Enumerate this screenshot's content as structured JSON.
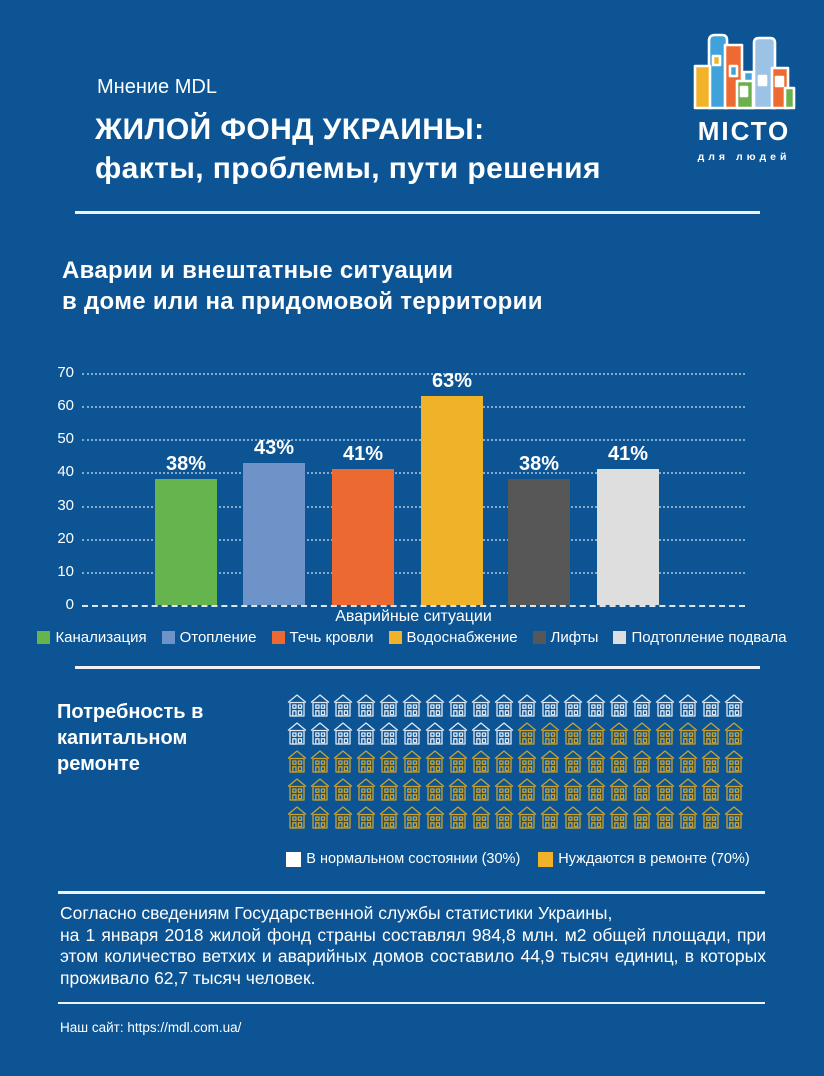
{
  "page": {
    "bg_color": "#0c5493",
    "kicker": "Мнение MDL",
    "title_line1": "ЖИЛОЙ ФОНД УКРАИНЫ:",
    "title_line2": "факты, проблемы, пути решения",
    "footer": "Наш сайт: https://mdl.com.ua/"
  },
  "logo": {
    "name": "МІСТО",
    "tagline": "для людей",
    "building_colors": [
      "#f2b32a",
      "#3fa2db",
      "#ed6a32",
      "#6ab04c",
      "#9cc3e5"
    ]
  },
  "accidents_chart": {
    "title_line1": "Аварии и внештатные ситуации",
    "title_line2": "в доме или на придомовой территории"
  },
  "repair_section": {
    "title_line1": "Потребность в",
    "title_line2": "капитальном",
    "title_line3": "ремонте"
  },
  "stats": {
    "line1": "Согласно сведениям Государственной службы статистики Украины,",
    "rest": "на 1 января 2018 жилой фонд страны составлял 984,8 млн. м2 общей площади, при этом количество ветхих и аварийных домов составило 44,9 тысяч единиц, в которых проживало 62,7 тысяч человек."
  },
  "chart_data": [
    {
      "type": "bar",
      "title": "Аварии и внештатные ситуации в доме или на придомовой территории",
      "categories": [
        "Канализация",
        "Отопление",
        "Течь кровли",
        "Водоснабжение",
        "Лифты",
        "Подтопление подвала"
      ],
      "values": [
        38,
        43,
        41,
        63,
        38,
        41
      ],
      "value_labels": [
        "38%",
        "43%",
        "41%",
        "63%",
        "38%",
        "41%"
      ],
      "colors": [
        "#65b44d",
        "#6e93c8",
        "#ec6a31",
        "#efb228",
        "#575757",
        "#dedede"
      ],
      "xlabel": "Аварийные ситуации",
      "ylabel": "",
      "ylim": [
        0,
        70
      ],
      "yticks": [
        0,
        10,
        20,
        30,
        40,
        50,
        60,
        70
      ],
      "grid": true,
      "gridline_style": "dotted-white",
      "legend_position": "bottom"
    },
    {
      "type": "pictogram",
      "title": "Потребность в капитальном ремонте",
      "icon": "house",
      "total_icons": 100,
      "icons_per_row": 20,
      "series": [
        {
          "name": "В нормальном состоянии (30%)",
          "value": 30,
          "color": "#ffffff",
          "icon_color": "#dfe9f4"
        },
        {
          "name": "Нуждаются в ремонте (70%)",
          "value": 70,
          "color": "#efb228",
          "icon_color": "#c9a231"
        }
      ],
      "legend_position": "bottom"
    }
  ]
}
